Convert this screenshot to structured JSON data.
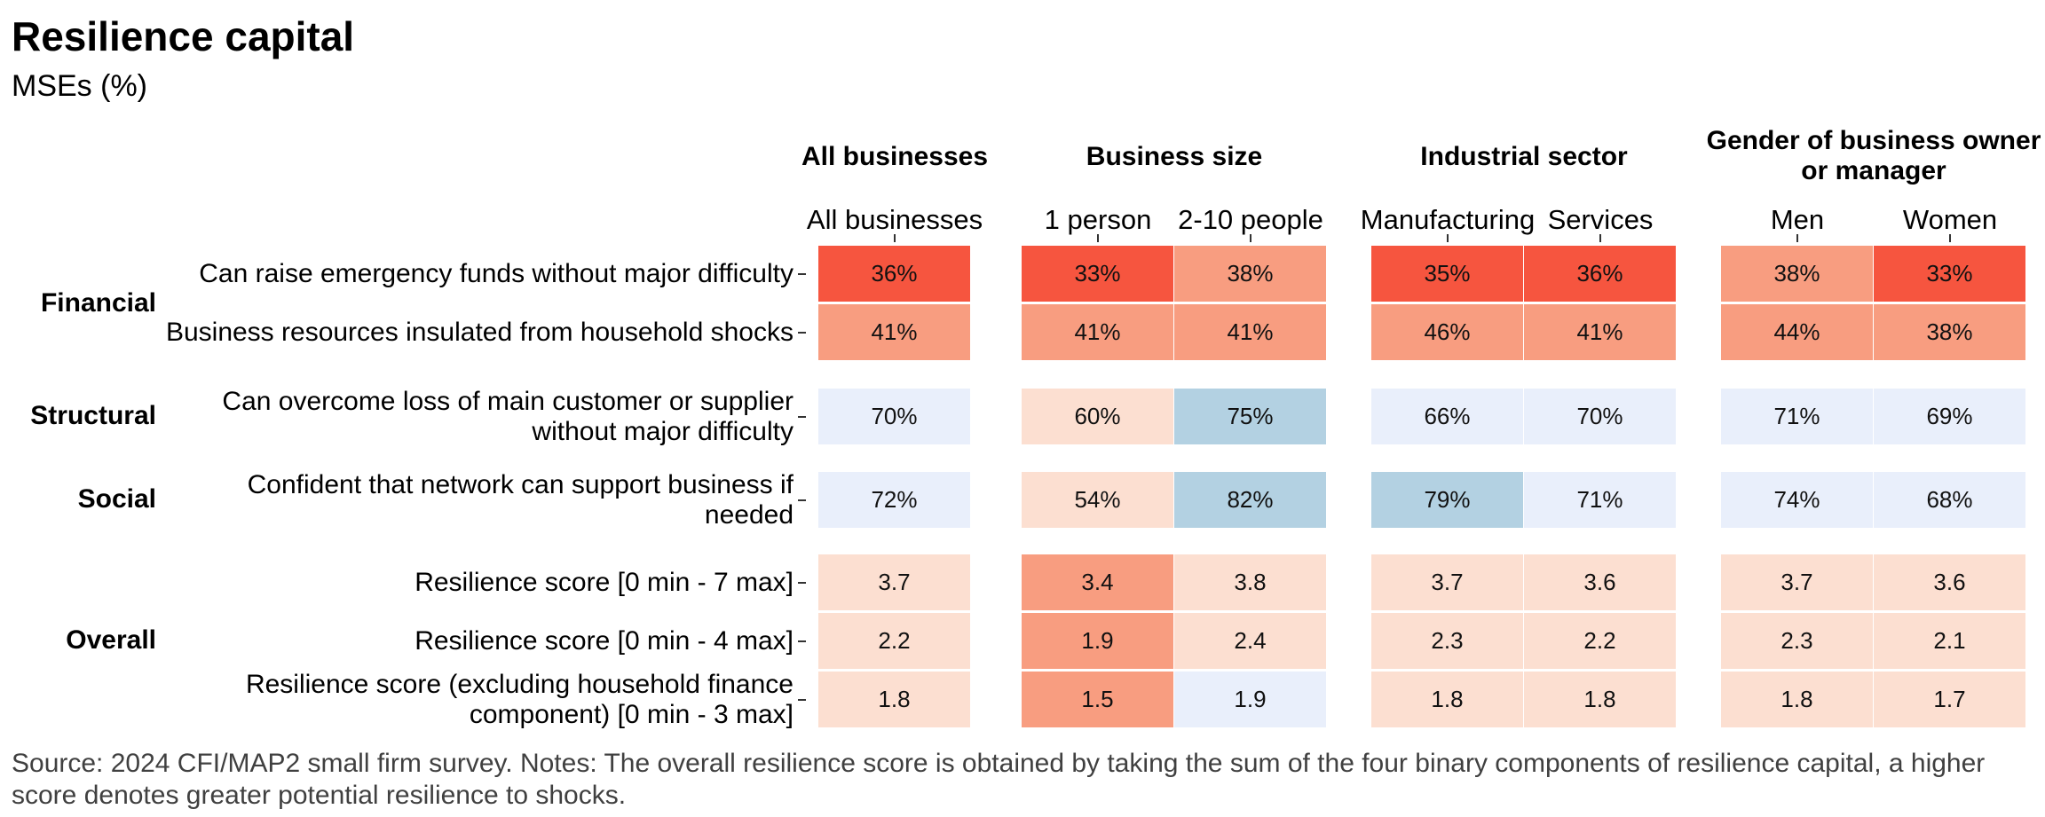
{
  "title": "Resilience capital",
  "subtitle": "MSEs (%)",
  "source": "Source: 2024 CFI/MAP2 small firm survey. Notes: The overall resilience score is obtained by taking the sum of the four binary components of resilience capital, a higher score denotes greater potential resilience to shocks.",
  "colors": {
    "red_strong": "#f6553f",
    "red_mid": "#f89d80",
    "red_pale": "#fcdfd1",
    "blue_pale": "#e9effb",
    "blue_mid": "#b3d1e2"
  },
  "chart_data": {
    "type": "heatmap",
    "title": "Resilience capital",
    "subtitle": "MSEs (%)",
    "groups": [
      {
        "label": "All businesses",
        "columns": [
          "All businesses"
        ]
      },
      {
        "label": "Business size",
        "columns": [
          "1 person",
          "2-10 people"
        ]
      },
      {
        "label": "Industrial sector",
        "columns": [
          "Manufacturing",
          "Services"
        ]
      },
      {
        "label": "Gender of business owner or manager",
        "columns": [
          "Men",
          "Women"
        ]
      }
    ],
    "categories": [
      "Financial",
      "Structural",
      "Social",
      "Overall"
    ],
    "rows": [
      {
        "category": "Financial",
        "label": "Can raise emergency funds without major difficulty",
        "values": [
          "36%",
          "33%",
          "38%",
          "35%",
          "36%",
          "38%",
          "33%"
        ],
        "colors": [
          "red_strong",
          "red_strong",
          "red_mid",
          "red_strong",
          "red_strong",
          "red_mid",
          "red_strong"
        ]
      },
      {
        "category": "Financial",
        "label": "Business resources insulated from household shocks",
        "values": [
          "41%",
          "41%",
          "41%",
          "46%",
          "41%",
          "44%",
          "38%"
        ],
        "colors": [
          "red_mid",
          "red_mid",
          "red_mid",
          "red_mid",
          "red_mid",
          "red_mid",
          "red_mid"
        ]
      },
      {
        "category": "Structural",
        "label": "Can overcome loss of main customer or supplier without major difficulty",
        "values": [
          "70%",
          "60%",
          "75%",
          "66%",
          "70%",
          "71%",
          "69%"
        ],
        "colors": [
          "blue_pale",
          "red_pale",
          "blue_mid",
          "blue_pale",
          "blue_pale",
          "blue_pale",
          "blue_pale"
        ]
      },
      {
        "category": "Social",
        "label": "Confident that network can support business if needed",
        "values": [
          "72%",
          "54%",
          "82%",
          "79%",
          "71%",
          "74%",
          "68%"
        ],
        "colors": [
          "blue_pale",
          "red_pale",
          "blue_mid",
          "blue_mid",
          "blue_pale",
          "blue_pale",
          "blue_pale"
        ]
      },
      {
        "category": "Overall",
        "label": "Resilience score [0 min - 7 max]",
        "values": [
          "3.7",
          "3.4",
          "3.8",
          "3.7",
          "3.6",
          "3.7",
          "3.6"
        ],
        "colors": [
          "red_pale",
          "red_mid",
          "red_pale",
          "red_pale",
          "red_pale",
          "red_pale",
          "red_pale"
        ]
      },
      {
        "category": "Overall",
        "label": "Resilience score [0 min - 4 max]",
        "values": [
          "2.2",
          "1.9",
          "2.4",
          "2.3",
          "2.2",
          "2.3",
          "2.1"
        ],
        "colors": [
          "red_pale",
          "red_mid",
          "red_pale",
          "red_pale",
          "red_pale",
          "red_pale",
          "red_pale"
        ]
      },
      {
        "category": "Overall",
        "label": "Resilience score (excluding household finance component) [0 min - 3 max]",
        "values": [
          "1.8",
          "1.5",
          "1.9",
          "1.8",
          "1.8",
          "1.8",
          "1.7"
        ],
        "colors": [
          "red_pale",
          "red_mid",
          "blue_pale",
          "red_pale",
          "red_pale",
          "red_pale",
          "red_pale"
        ]
      }
    ]
  }
}
